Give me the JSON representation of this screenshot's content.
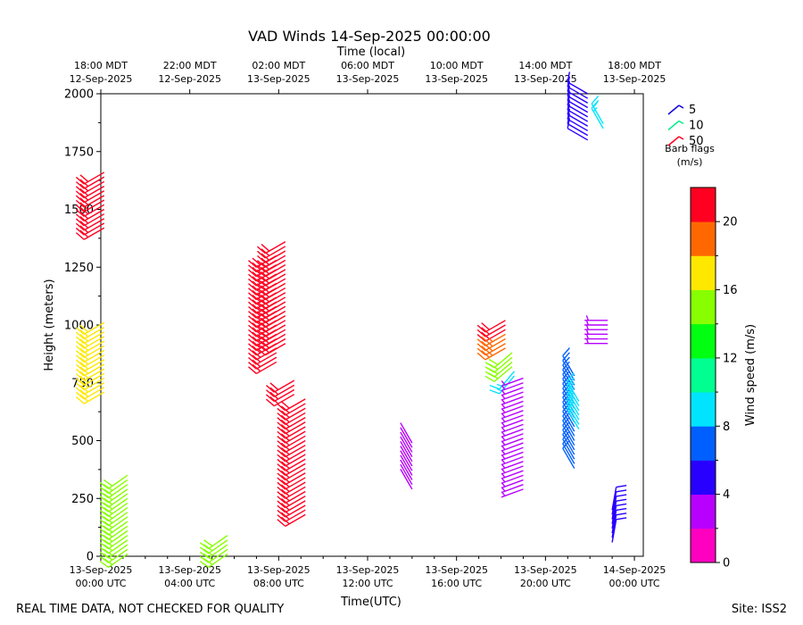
{
  "chart_data": {
    "type": "wind-barb",
    "title": "VAD Winds 14-Sep-2025 00:00:00",
    "xlabel": "Time(UTC)",
    "x2label": "Time (local)",
    "ylabel": "Height (meters)",
    "xlim_hours_utc": [
      0,
      24.4
    ],
    "ylim": [
      0,
      2000
    ],
    "yticks": [
      0,
      250,
      500,
      750,
      1000,
      1250,
      1500,
      1750,
      2000
    ],
    "bottom_ticks": [
      {
        "hour": 0,
        "line1": "13-Sep-2025",
        "line2": "00:00 UTC"
      },
      {
        "hour": 4,
        "line1": "13-Sep-2025",
        "line2": "04:00 UTC"
      },
      {
        "hour": 8,
        "line1": "13-Sep-2025",
        "line2": "08:00 UTC"
      },
      {
        "hour": 12,
        "line1": "13-Sep-2025",
        "line2": "12:00 UTC"
      },
      {
        "hour": 16,
        "line1": "13-Sep-2025",
        "line2": "16:00 UTC"
      },
      {
        "hour": 20,
        "line1": "13-Sep-2025",
        "line2": "20:00 UTC"
      },
      {
        "hour": 24,
        "line1": "14-Sep-2025",
        "line2": "00:00 UTC"
      }
    ],
    "top_ticks": [
      {
        "hour": 0,
        "line1": "18:00 MDT",
        "line2": "12-Sep-2025"
      },
      {
        "hour": 4,
        "line1": "22:00 MDT",
        "line2": "12-Sep-2025"
      },
      {
        "hour": 8,
        "line1": "02:00 MDT",
        "line2": "13-Sep-2025"
      },
      {
        "hour": 12,
        "line1": "06:00 MDT",
        "line2": "13-Sep-2025"
      },
      {
        "hour": 16,
        "line1": "10:00 MDT",
        "line2": "13-Sep-2025"
      },
      {
        "hour": 20,
        "line1": "14:00 MDT",
        "line2": "13-Sep-2025"
      },
      {
        "hour": 24,
        "line1": "18:00 MDT",
        "line2": "13-Sep-2025"
      }
    ],
    "barb_legend": {
      "items": [
        {
          "label": "5",
          "color": "#1000e0"
        },
        {
          "label": "10",
          "color": "#00ee88"
        },
        {
          "label": "50",
          "color": "#ff0020"
        }
      ],
      "title_line1": "Barb flags",
      "title_line2": "(m/s)"
    },
    "colorbar": {
      "label": "Wind speed (m/s)",
      "min": 0,
      "max": 22,
      "ticks": [
        0,
        4,
        8,
        12,
        16,
        20
      ],
      "colors": [
        "#ff00c0",
        "#b800ff",
        "#2800ff",
        "#0060ff",
        "#00e4ff",
        "#00ff90",
        "#00ff10",
        "#88ff00",
        "#ffe800",
        "#ff6800",
        "#ff0020"
      ]
    },
    "barb_groups": [
      {
        "hour": 0.15,
        "z_min": 1420,
        "z_max": 1660,
        "dz": 20,
        "speed": 21.5,
        "dir": 240
      },
      {
        "hour": 0.15,
        "z_min": 710,
        "z_max": 1020,
        "dz": 20,
        "speed": 17,
        "dir": 240
      },
      {
        "hour": 1.2,
        "z_min": 10,
        "z_max": 350,
        "dz": 20,
        "speed": 15,
        "dir": 235
      },
      {
        "hour": 5.7,
        "z_min": 10,
        "z_max": 90,
        "dz": 20,
        "speed": 15,
        "dir": 235
      },
      {
        "hour": 7.9,
        "z_min": 840,
        "z_max": 1300,
        "dz": 20,
        "speed": 21.5,
        "dir": 240
      },
      {
        "hour": 8.3,
        "z_min": 920,
        "z_max": 1370,
        "dz": 20,
        "speed": 21.5,
        "dir": 240
      },
      {
        "hour": 8.7,
        "z_min": 700,
        "z_max": 760,
        "dz": 20,
        "speed": 21.5,
        "dir": 240
      },
      {
        "hour": 9.2,
        "z_min": 180,
        "z_max": 690,
        "dz": 20,
        "speed": 21.5,
        "dir": 240
      },
      {
        "hour": 14.0,
        "z_min": 290,
        "z_max": 490,
        "dz": 20,
        "speed": 2,
        "dir": 330
      },
      {
        "hour": 18.2,
        "z_min": 980,
        "z_max": 1020,
        "dz": 20,
        "speed": 21.5,
        "dir": 240
      },
      {
        "hour": 18.2,
        "z_min": 900,
        "z_max": 970,
        "dz": 20,
        "speed": 18.5,
        "dir": 240
      },
      {
        "hour": 18.5,
        "z_min": 820,
        "z_max": 890,
        "dz": 20,
        "speed": 15,
        "dir": 230
      },
      {
        "hour": 18.6,
        "z_min": 780,
        "z_max": 810,
        "dz": 20,
        "speed": 8.5,
        "dir": 220
      },
      {
        "hour": 19.0,
        "z_min": 290,
        "z_max": 770,
        "dz": 20,
        "speed": 3.5,
        "dir": 250
      },
      {
        "hour": 21.3,
        "z_min": 380,
        "z_max": 780,
        "dz": 20,
        "speed": 7,
        "dir": 330
      },
      {
        "hour": 21.5,
        "z_min": 550,
        "z_max": 680,
        "dz": 20,
        "speed": 9,
        "dir": 330
      },
      {
        "hour": 21.9,
        "z_min": 1800,
        "z_max": 2000,
        "dz": 20,
        "speed": 5,
        "dir": 300
      },
      {
        "hour": 22.6,
        "z_min": 1850,
        "z_max": 1880,
        "dz": 20,
        "speed": 9,
        "dir": 330
      },
      {
        "hour": 22.8,
        "z_min": 920,
        "z_max": 1030,
        "dz": 20,
        "speed": 3.5,
        "dir": 270
      },
      {
        "hour": 23.0,
        "z_min": 60,
        "z_max": 200,
        "dz": 20,
        "speed": 5,
        "dir": 10
      }
    ]
  },
  "footer": {
    "disclaimer": "REAL TIME DATA, NOT CHECKED FOR QUALITY",
    "site": "Site: ISS2"
  }
}
